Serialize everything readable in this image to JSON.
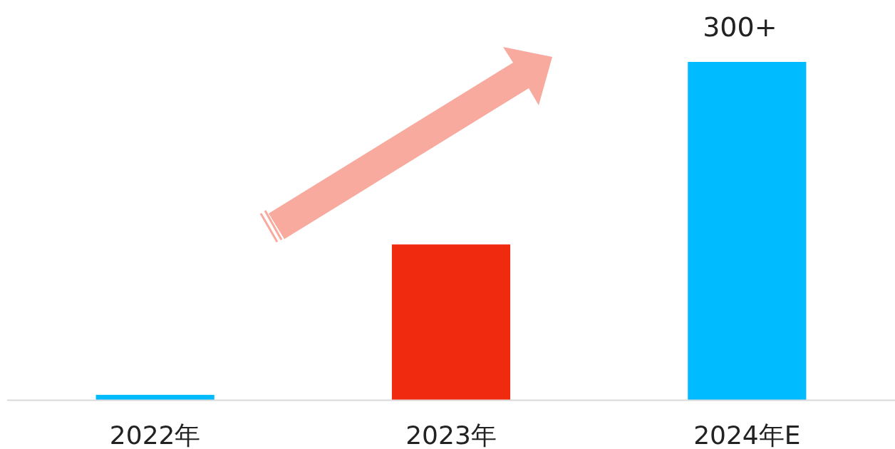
{
  "chart_data": {
    "type": "bar",
    "categories": [
      "2022年",
      "2023年",
      "2024年E"
    ],
    "values": [
      4.5,
      138,
      300
    ],
    "colors": [
      "#00bbff",
      "#ef2a0e",
      "#00bbff"
    ],
    "value_labels": [
      null,
      null,
      "300+"
    ]
  }
}
